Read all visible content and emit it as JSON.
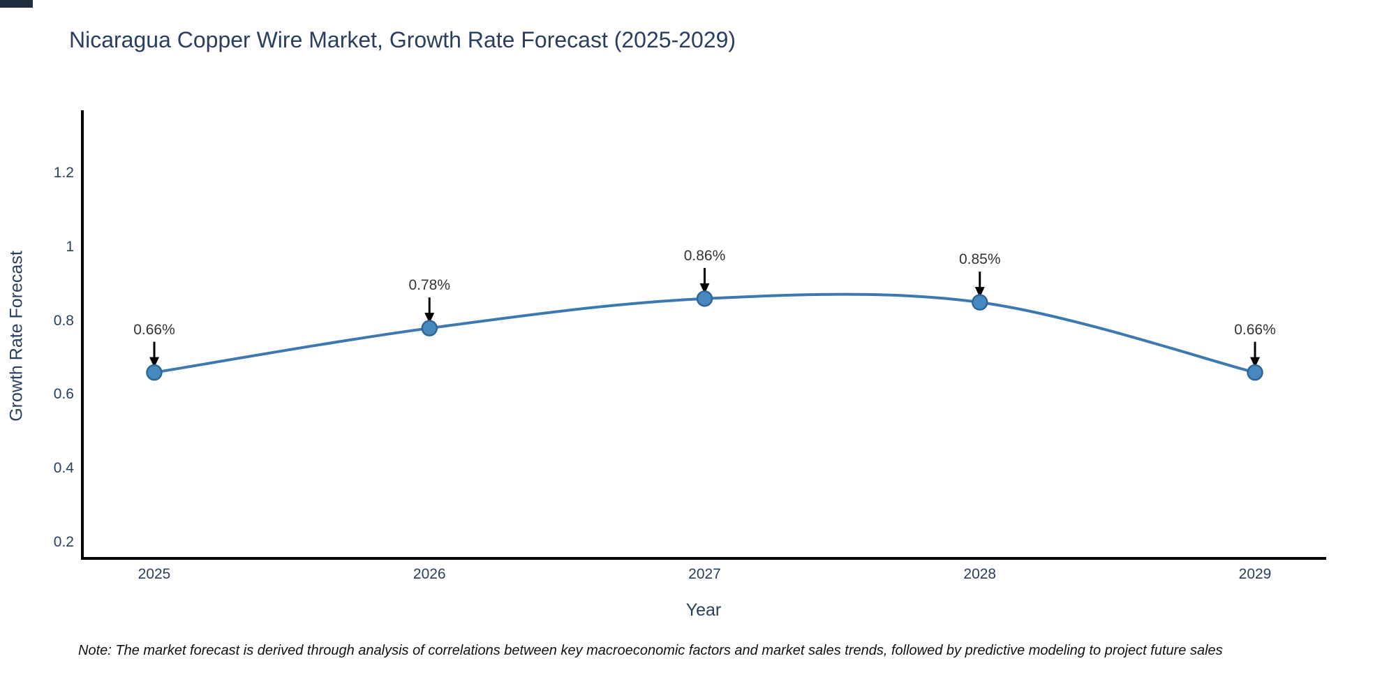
{
  "chart_data": {
    "type": "line",
    "line_shape": "spline",
    "title": "Nicaragua Copper Wire Market, Growth Rate Forecast (2025-2029)",
    "xlabel": "Year",
    "ylabel": "Growth Rate Forecast",
    "categories": [
      2025,
      2026,
      2027,
      2028,
      2029
    ],
    "series": [
      {
        "name": "Growth Rate Forecast",
        "values": [
          0.66,
          0.78,
          0.86,
          0.85,
          0.66
        ]
      }
    ],
    "point_labels": [
      "0.66%",
      "0.78%",
      "0.86%",
      "0.85%",
      "0.66%"
    ],
    "x_tick_labels": [
      "2025",
      "2026",
      "2027",
      "2028",
      "2029"
    ],
    "y_ticks": [
      0.2,
      0.4,
      0.6,
      0.8,
      1,
      1.2
    ],
    "y_tick_labels": [
      "0.2",
      "0.4",
      "0.6",
      "0.8",
      "1",
      "1.2"
    ],
    "ylim": [
      0.15,
      1.41
    ],
    "grid": false,
    "legend": false,
    "colors": {
      "line": "#3c79b0",
      "marker_fill": "#4788bf",
      "marker_edge": "#2f6699",
      "axis_line": "#000000",
      "text": "#2a3f5f",
      "annotation_text": "#333333",
      "annotation_arrow": "#000000"
    }
  },
  "note": {
    "text": "Note: The market forecast is derived through analysis of correlations between key macroeconomic factors and market sales trends, followed by predictive modeling to project future sales"
  },
  "decor": {
    "corner_bar_color": "#1e2d3d"
  }
}
